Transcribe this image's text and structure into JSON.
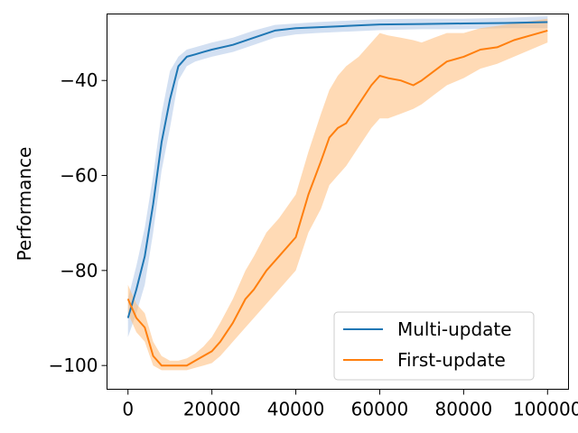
{
  "chart_data": {
    "type": "line",
    "title": "",
    "xlabel": "",
    "ylabel": "Performance",
    "xlim": [
      -5000,
      105000
    ],
    "ylim": [
      -105,
      -26
    ],
    "xticks": [
      0,
      20000,
      40000,
      60000,
      80000,
      100000
    ],
    "xtick_labels": [
      "0",
      "20000",
      "40000",
      "60000",
      "80000",
      "100000"
    ],
    "yticks": [
      -40,
      -60,
      -80,
      -100
    ],
    "ytick_labels": [
      "−40",
      "−60",
      "−80",
      "−100"
    ],
    "grid": false,
    "legend_position": "lower-right",
    "series": [
      {
        "name": "Multi-update",
        "color": "#1f77b4",
        "band_color": "#aec7e8",
        "x": [
          0,
          2000,
          4000,
          6000,
          8000,
          10000,
          12000,
          14000,
          16000,
          18000,
          20000,
          25000,
          30000,
          35000,
          40000,
          45000,
          50000,
          55000,
          60000,
          70000,
          80000,
          90000,
          100000
        ],
        "y": [
          -90,
          -84,
          -77,
          -66,
          -53,
          -44,
          -37,
          -35,
          -34.5,
          -34,
          -33.5,
          -32.5,
          -31,
          -29.5,
          -29,
          -28.8,
          -28.6,
          -28.4,
          -28.2,
          -28.1,
          -28,
          -27.9,
          -27.7
        ],
        "lower": [
          -94,
          -89,
          -83,
          -72,
          -59,
          -50,
          -40,
          -37,
          -36,
          -35.5,
          -35,
          -34,
          -32.5,
          -31,
          -30.3,
          -30,
          -29.8,
          -29.6,
          -29.4,
          -29.2,
          -29.2,
          -29,
          -29
        ],
        "upper": [
          -86,
          -79,
          -71,
          -60,
          -47,
          -38,
          -35,
          -33.5,
          -33,
          -32.5,
          -32,
          -31,
          -29.5,
          -28.3,
          -28,
          -27.7,
          -27.5,
          -27.3,
          -27.1,
          -27,
          -27,
          -26.8,
          -26.5
        ]
      },
      {
        "name": "First-update",
        "color": "#ff7f0e",
        "band_color": "#ffbb78",
        "x": [
          0,
          2000,
          4000,
          6000,
          8000,
          10000,
          12000,
          14000,
          16000,
          18000,
          20000,
          22000,
          25000,
          28000,
          30000,
          33000,
          36000,
          40000,
          43000,
          46000,
          48000,
          50000,
          52000,
          55000,
          58000,
          60000,
          62000,
          65000,
          68000,
          70000,
          73000,
          76000,
          80000,
          84000,
          88000,
          92000,
          96000,
          100000
        ],
        "y": [
          -86,
          -90,
          -92,
          -98,
          -100,
          -100,
          -100,
          -100,
          -99,
          -98,
          -97,
          -95,
          -91,
          -86,
          -84,
          -80,
          -77,
          -73,
          -64,
          -57,
          -52,
          -50,
          -49,
          -45,
          -41,
          -39,
          -39.5,
          -40,
          -41,
          -40,
          -38,
          -36,
          -35,
          -33.5,
          -33,
          -31.5,
          -30.5,
          -29.5
        ],
        "lower": [
          -89,
          -93,
          -95,
          -100,
          -101,
          -101,
          -101,
          -101,
          -100.5,
          -100,
          -99.5,
          -98,
          -95,
          -92,
          -90,
          -87,
          -84,
          -80,
          -72,
          -67,
          -62,
          -60,
          -58,
          -54,
          -50,
          -48,
          -48,
          -47,
          -46,
          -45,
          -43,
          -41,
          -39.5,
          -37.5,
          -36.5,
          -35,
          -33.5,
          -32
        ],
        "upper": [
          -83,
          -87,
          -89,
          -95,
          -98,
          -99,
          -99,
          -98.5,
          -97.5,
          -96,
          -94,
          -91,
          -86,
          -80,
          -77,
          -72,
          -69,
          -64,
          -55,
          -47,
          -42,
          -39,
          -37,
          -35,
          -32,
          -30,
          -30.5,
          -31,
          -31.5,
          -32,
          -31,
          -30,
          -30,
          -29,
          -28.5,
          -28,
          -27.5,
          -27
        ]
      }
    ]
  }
}
